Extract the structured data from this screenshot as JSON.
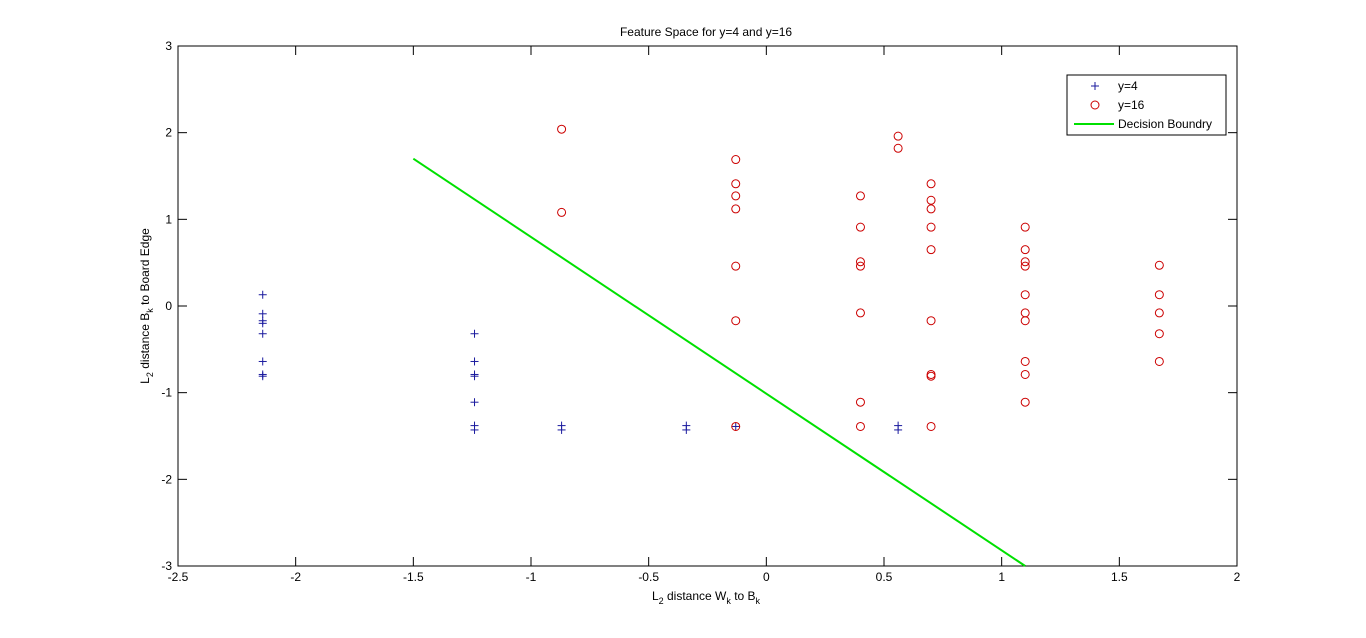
{
  "chart_data": {
    "type": "scatter",
    "title": "Feature Space for y=4 and y=16",
    "xlabel": {
      "prefix": "L",
      "sub1": "2",
      "middle": " distance W",
      "sub2": "k",
      "mid2": " to B",
      "sub3": "k",
      "suffix": ""
    },
    "ylabel": {
      "prefix": "L",
      "sub1": "2",
      "middle": " distance B",
      "sub2": "k",
      "mid2": " to Board Edge",
      "sub3": "",
      "suffix": ""
    },
    "xlim": [
      -2.5,
      2
    ],
    "ylim": [
      -3,
      3
    ],
    "xticks": [
      -2.5,
      -2,
      -1.5,
      -1,
      -0.5,
      0,
      0.5,
      1,
      1.5,
      2
    ],
    "xtick_labels": [
      "-2.5",
      "-2",
      "-1.5",
      "-1",
      "-0.5",
      "0",
      "0.5",
      "1",
      "1.5",
      "2"
    ],
    "yticks": [
      -3,
      -2,
      -1,
      0,
      1,
      2,
      3
    ],
    "ytick_labels": [
      "-3",
      "-2",
      "-1",
      "0",
      "1",
      "2",
      "3"
    ],
    "grid": false,
    "legend_position": "top-right",
    "series": [
      {
        "name": "y=4",
        "marker": "plus",
        "color": "#1a1a9e",
        "points": [
          [
            -2.14,
            0.13
          ],
          [
            -2.14,
            -0.09
          ],
          [
            -2.14,
            -0.17
          ],
          [
            -2.14,
            -0.2
          ],
          [
            -2.14,
            -0.32
          ],
          [
            -2.14,
            -0.64
          ],
          [
            -2.14,
            -0.79
          ],
          [
            -2.14,
            -0.81
          ],
          [
            -1.24,
            -0.32
          ],
          [
            -1.24,
            -0.64
          ],
          [
            -1.24,
            -0.79
          ],
          [
            -1.24,
            -0.81
          ],
          [
            -1.24,
            -1.11
          ],
          [
            -1.24,
            -1.38
          ],
          [
            -1.24,
            -1.43
          ],
          [
            -0.87,
            -1.38
          ],
          [
            -0.87,
            -1.43
          ],
          [
            -0.34,
            -1.38
          ],
          [
            -0.34,
            -1.43
          ],
          [
            -0.13,
            -1.39
          ],
          [
            0.56,
            -1.38
          ],
          [
            0.56,
            -1.43
          ]
        ]
      },
      {
        "name": "y=16",
        "marker": "circle",
        "color": "#cc0000",
        "points": [
          [
            -0.87,
            2.04
          ],
          [
            -0.87,
            1.08
          ],
          [
            -0.13,
            1.69
          ],
          [
            -0.13,
            1.41
          ],
          [
            -0.13,
            1.27
          ],
          [
            -0.13,
            1.12
          ],
          [
            -0.13,
            0.46
          ],
          [
            -0.13,
            -0.17
          ],
          [
            -0.13,
            -1.39
          ],
          [
            0.4,
            1.27
          ],
          [
            0.4,
            0.91
          ],
          [
            0.4,
            0.51
          ],
          [
            0.4,
            0.46
          ],
          [
            0.4,
            -0.08
          ],
          [
            0.4,
            -1.11
          ],
          [
            0.4,
            -1.39
          ],
          [
            0.56,
            1.96
          ],
          [
            0.56,
            1.82
          ],
          [
            0.7,
            1.41
          ],
          [
            0.7,
            1.22
          ],
          [
            0.7,
            1.12
          ],
          [
            0.7,
            0.91
          ],
          [
            0.7,
            0.65
          ],
          [
            0.7,
            -0.17
          ],
          [
            0.7,
            -0.79
          ],
          [
            0.7,
            -0.81
          ],
          [
            0.7,
            -1.39
          ],
          [
            1.1,
            0.91
          ],
          [
            1.1,
            0.65
          ],
          [
            1.1,
            0.51
          ],
          [
            1.1,
            0.46
          ],
          [
            1.1,
            0.13
          ],
          [
            1.1,
            -0.08
          ],
          [
            1.1,
            -0.17
          ],
          [
            1.1,
            -0.64
          ],
          [
            1.1,
            -0.79
          ],
          [
            1.1,
            -1.11
          ],
          [
            1.67,
            0.47
          ],
          [
            1.67,
            0.13
          ],
          [
            1.67,
            -0.08
          ],
          [
            1.67,
            -0.32
          ],
          [
            1.67,
            -0.64
          ]
        ]
      },
      {
        "name": "Decision Boundry",
        "marker": "line",
        "color": "#00e000",
        "points": [
          [
            -1.5,
            1.7
          ],
          [
            1.1,
            -3.0
          ]
        ]
      }
    ]
  }
}
